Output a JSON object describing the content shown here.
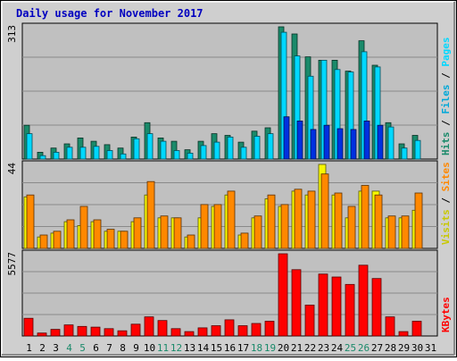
{
  "chart_data": {
    "type": "bar",
    "title": "Daily usage for November 2017",
    "categories": [
      "1",
      "2",
      "3",
      "4",
      "5",
      "6",
      "7",
      "8",
      "9",
      "10",
      "11",
      "12",
      "13",
      "14",
      "15",
      "16",
      "17",
      "18",
      "19",
      "20",
      "21",
      "22",
      "23",
      "24",
      "25",
      "26",
      "27",
      "28",
      "29",
      "30",
      "31"
    ],
    "weekend_days": [
      "4",
      "5",
      "11",
      "12",
      "18",
      "19",
      "25",
      "26"
    ],
    "colors": {
      "hits": "#1a8a6a",
      "files": "#00d8ff",
      "pages": "#0030e0",
      "visits": "#f8f800",
      "sites": "#ff8800",
      "kbytes": "#ff0000",
      "title": "#0000c0",
      "weekend_label": "#1a8a6a",
      "weekday_label": "#000000",
      "plot_bg": "#c0c0c0",
      "frame_bg": "#cfcfcf"
    },
    "panels": [
      {
        "id": "usage",
        "max_label": "313",
        "ymax": 313,
        "legend": [
          {
            "text": "Hits",
            "color": "#1a8a6a"
          },
          {
            "text": " / ",
            "color": "#000000"
          },
          {
            "text": "Files",
            "color": "#00a8d8"
          },
          {
            "text": " / ",
            "color": "#000000"
          },
          {
            "text": "Pages",
            "color": "#00d8ff"
          }
        ],
        "series": [
          {
            "name": "Hits",
            "color": "#1a8a6a",
            "values": [
              80,
              16,
              26,
              36,
              50,
              42,
              34,
              26,
              52,
              86,
              50,
              42,
              22,
              42,
              60,
              56,
              40,
              66,
              74,
              313,
              296,
              242,
              234,
              234,
              208,
              280,
              222,
              86,
              36,
              56,
              0
            ]
          },
          {
            "name": "Files",
            "color": "#00d8ff",
            "values": [
              60,
              8,
              16,
              28,
              28,
              30,
              20,
              12,
              48,
              60,
              42,
              20,
              14,
              32,
              40,
              52,
              28,
              54,
              60,
              300,
              244,
              196,
              234,
              212,
              206,
              254,
              218,
              76,
              26,
              44,
              0
            ]
          },
          {
            "name": "Pages",
            "color": "#0030e0",
            "values": [
              0,
              0,
              0,
              0,
              0,
              0,
              0,
              0,
              0,
              0,
              0,
              0,
              0,
              0,
              0,
              0,
              0,
              0,
              0,
              100,
              90,
              70,
              80,
              72,
              70,
              90,
              80,
              0,
              0,
              0,
              0
            ]
          }
        ]
      },
      {
        "id": "visits",
        "max_label": "44",
        "ymax": 44,
        "legend": [
          {
            "text": "Visits",
            "color": "#c8c800"
          },
          {
            "text": " / ",
            "color": "#000000"
          },
          {
            "text": "Sites",
            "color": "#ff8800"
          }
        ],
        "series": [
          {
            "name": "Visits",
            "color": "#f8f800",
            "values": [
              27,
              6,
              8,
              14,
              12,
              14,
              9,
              9,
              14,
              28,
              16,
              16,
              6,
              16,
              22,
              28,
              7,
              16,
              26,
              22,
              30,
              28,
              44,
              28,
              16,
              30,
              30,
              16,
              16,
              20,
              0
            ]
          },
          {
            "name": "Sites",
            "color": "#ff8800",
            "values": [
              28,
              7,
              9,
              15,
              22,
              15,
              10,
              9,
              16,
              35,
              17,
              16,
              7,
              23,
              23,
              30,
              8,
              17,
              28,
              23,
              31,
              30,
              39,
              29,
              22,
              33,
              28,
              17,
              17,
              29,
              0
            ]
          }
        ]
      },
      {
        "id": "kbytes",
        "max_label": "5577",
        "ymax": 5577,
        "legend": [
          {
            "text": "KBytes",
            "color": "#ff0000"
          }
        ],
        "series": [
          {
            "name": "KBytes",
            "color": "#ff0000",
            "values": [
              1200,
              200,
              450,
              750,
              650,
              600,
              500,
              350,
              800,
              1300,
              1050,
              500,
              300,
              550,
              700,
              1100,
              700,
              850,
              1000,
              5577,
              4500,
              2100,
              4200,
              4000,
              3500,
              4800,
              3900,
              1300,
              300,
              1000,
              0
            ]
          }
        ]
      }
    ]
  }
}
